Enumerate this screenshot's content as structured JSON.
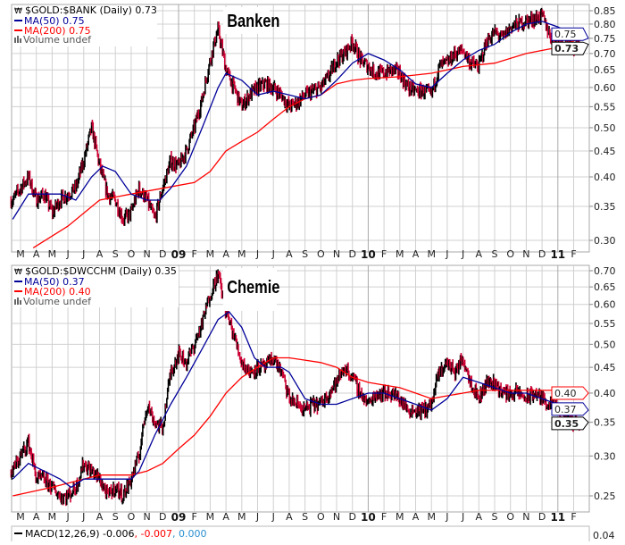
{
  "x_axis_labels": [
    "M",
    "A",
    "M",
    "J",
    "J",
    "A",
    "S",
    "O",
    "N",
    "D",
    "09",
    "F",
    "M",
    "A",
    "M",
    "J",
    "J",
    "A",
    "S",
    "O",
    "N",
    "D",
    "10",
    "F",
    "M",
    "A",
    "M",
    "J",
    "J",
    "A",
    "S",
    "O",
    "N",
    "D",
    "11",
    "F"
  ],
  "macd": {
    "label": "MACD(12,26,9) -0.006",
    "signal": ", -0.007",
    "hist": ", 0.000",
    "tick": "0.04",
    "signal_color": "#ff0000",
    "hist_color": "#2a8fd0"
  },
  "colors": {
    "ma50": "#000099",
    "ma200": "#ff0000",
    "up_bar": "#000000",
    "down_bar": "#cc0033",
    "grid": "#d0d0d0"
  },
  "chart_data": [
    {
      "type": "line",
      "title": "Banken",
      "legend": {
        "symbol": "$GOLD:$BANK (Daily) 0.73",
        "ma50": "MA(50) 0.75",
        "ma200": "MA(200) 0.75",
        "volume": "Volume undef"
      },
      "callouts": {
        "last": "0.73",
        "ma50": "0.75"
      },
      "scale": "log",
      "ylim": [
        0.29,
        0.86
      ],
      "yticks": [
        "0.85",
        "0.80",
        "0.75",
        "0.70",
        "0.65",
        "0.60",
        "0.55",
        "0.50",
        "0.45",
        "0.40",
        "0.35",
        "0.30"
      ],
      "x_unit": "months since Mar 2008",
      "close": [
        [
          -0.5,
          0.36
        ],
        [
          0,
          0.38
        ],
        [
          0.5,
          0.4
        ],
        [
          1,
          0.36
        ],
        [
          1.5,
          0.37
        ],
        [
          2,
          0.34
        ],
        [
          2.5,
          0.36
        ],
        [
          3,
          0.37
        ],
        [
          3.5,
          0.38
        ],
        [
          4,
          0.43
        ],
        [
          4.5,
          0.5
        ],
        [
          5,
          0.42
        ],
        [
          5.5,
          0.37
        ],
        [
          6,
          0.36
        ],
        [
          6.5,
          0.33
        ],
        [
          7,
          0.34
        ],
        [
          7.5,
          0.38
        ],
        [
          8,
          0.36
        ],
        [
          8.5,
          0.33
        ],
        [
          9,
          0.38
        ],
        [
          9.5,
          0.43
        ],
        [
          10,
          0.42
        ],
        [
          10.5,
          0.45
        ],
        [
          11,
          0.5
        ],
        [
          11.5,
          0.57
        ],
        [
          12,
          0.68
        ],
        [
          12.5,
          0.78
        ],
        [
          13,
          0.65
        ],
        [
          13.5,
          0.6
        ],
        [
          14,
          0.55
        ],
        [
          14.5,
          0.58
        ],
        [
          15,
          0.6
        ],
        [
          15.5,
          0.61
        ],
        [
          16,
          0.6
        ],
        [
          16.5,
          0.58
        ],
        [
          17,
          0.55
        ],
        [
          17.5,
          0.56
        ],
        [
          18,
          0.58
        ],
        [
          18.5,
          0.59
        ],
        [
          19,
          0.6
        ],
        [
          19.5,
          0.63
        ],
        [
          20,
          0.68
        ],
        [
          20.5,
          0.7
        ],
        [
          21,
          0.74
        ],
        [
          21.5,
          0.68
        ],
        [
          22,
          0.66
        ],
        [
          22.5,
          0.64
        ],
        [
          23,
          0.64
        ],
        [
          23.5,
          0.65
        ],
        [
          24,
          0.64
        ],
        [
          24.5,
          0.6
        ],
        [
          25,
          0.59
        ],
        [
          25.5,
          0.59
        ],
        [
          26,
          0.58
        ],
        [
          26.5,
          0.66
        ],
        [
          27,
          0.67
        ],
        [
          27.5,
          0.7
        ],
        [
          28,
          0.71
        ],
        [
          28.5,
          0.67
        ],
        [
          29,
          0.66
        ],
        [
          29.5,
          0.74
        ],
        [
          30,
          0.77
        ],
        [
          30.5,
          0.75
        ],
        [
          31,
          0.79
        ],
        [
          31.5,
          0.8
        ],
        [
          32,
          0.81
        ],
        [
          32.5,
          0.82
        ],
        [
          33,
          0.83
        ],
        [
          33.5,
          0.76
        ],
        [
          34,
          0.74
        ],
        [
          34.5,
          0.73
        ],
        [
          35,
          0.72
        ],
        [
          35.4,
          0.73
        ]
      ],
      "ma50": [
        [
          -0.5,
          0.33
        ],
        [
          0.5,
          0.37
        ],
        [
          1.5,
          0.37
        ],
        [
          2.5,
          0.37
        ],
        [
          3.5,
          0.36
        ],
        [
          4.5,
          0.4
        ],
        [
          5.2,
          0.42
        ],
        [
          6,
          0.41
        ],
        [
          7,
          0.37
        ],
        [
          8,
          0.36
        ],
        [
          8.8,
          0.36
        ],
        [
          9.5,
          0.38
        ],
        [
          10.5,
          0.42
        ],
        [
          11.5,
          0.5
        ],
        [
          12.5,
          0.6
        ],
        [
          13,
          0.64
        ],
        [
          14,
          0.62
        ],
        [
          15,
          0.58
        ],
        [
          16,
          0.59
        ],
        [
          17,
          0.58
        ],
        [
          18,
          0.57
        ],
        [
          19,
          0.58
        ],
        [
          20,
          0.62
        ],
        [
          21,
          0.67
        ],
        [
          22,
          0.7
        ],
        [
          23,
          0.68
        ],
        [
          24,
          0.65
        ],
        [
          25,
          0.61
        ],
        [
          26,
          0.6
        ],
        [
          27,
          0.64
        ],
        [
          28,
          0.68
        ],
        [
          29,
          0.71
        ],
        [
          30,
          0.73
        ],
        [
          31,
          0.77
        ],
        [
          32,
          0.8
        ],
        [
          33,
          0.81
        ],
        [
          34,
          0.79
        ],
        [
          35.4,
          0.75
        ]
      ],
      "ma200": [
        [
          0.8,
          0.29
        ],
        [
          3,
          0.32
        ],
        [
          5,
          0.36
        ],
        [
          7,
          0.37
        ],
        [
          9,
          0.38
        ],
        [
          11,
          0.39
        ],
        [
          12,
          0.41
        ],
        [
          13,
          0.45
        ],
        [
          14,
          0.47
        ],
        [
          15,
          0.49
        ],
        [
          16,
          0.52
        ],
        [
          17,
          0.55
        ],
        [
          18,
          0.57
        ],
        [
          19,
          0.58
        ],
        [
          20,
          0.61
        ],
        [
          21,
          0.62
        ],
        [
          22,
          0.625
        ],
        [
          24,
          0.63
        ],
        [
          26,
          0.64
        ],
        [
          28,
          0.66
        ],
        [
          30,
          0.67
        ],
        [
          32,
          0.7
        ],
        [
          34,
          0.72
        ],
        [
          35.4,
          0.75
        ]
      ]
    },
    {
      "type": "line",
      "title": "Chemie",
      "legend": {
        "symbol": "$GOLD:$DWCCHM (Daily) 0.35",
        "ma50": "MA(50) 0.37",
        "ma200": "MA(200) 0.40",
        "volume": "Volume undef"
      },
      "callouts": {
        "last": "0.35",
        "ma50": "0.37",
        "ma200": "0.40"
      },
      "scale": "log",
      "ylim": [
        0.235,
        0.72
      ],
      "yticks": [
        "0.70",
        "0.65",
        "0.60",
        "0.55",
        "0.50",
        "0.45",
        "0.40",
        "0.35",
        "0.30",
        "0.25"
      ],
      "x_unit": "months since Mar 2008",
      "close": [
        [
          -0.5,
          0.28
        ],
        [
          0,
          0.3
        ],
        [
          0.5,
          0.32
        ],
        [
          1,
          0.27
        ],
        [
          1.5,
          0.27
        ],
        [
          2,
          0.26
        ],
        [
          2.5,
          0.25
        ],
        [
          3,
          0.25
        ],
        [
          3.5,
          0.26
        ],
        [
          4,
          0.29
        ],
        [
          4.5,
          0.28
        ],
        [
          5,
          0.27
        ],
        [
          5.5,
          0.25
        ],
        [
          6,
          0.26
        ],
        [
          6.5,
          0.25
        ],
        [
          7,
          0.27
        ],
        [
          7.5,
          0.3
        ],
        [
          8,
          0.38
        ],
        [
          8.5,
          0.35
        ],
        [
          9,
          0.34
        ],
        [
          9.5,
          0.44
        ],
        [
          10,
          0.48
        ],
        [
          10.5,
          0.46
        ],
        [
          11,
          0.5
        ],
        [
          11.5,
          0.55
        ],
        [
          12,
          0.63
        ],
        [
          12.5,
          0.69
        ],
        [
          13,
          0.58
        ],
        [
          13.5,
          0.52
        ],
        [
          14,
          0.46
        ],
        [
          14.5,
          0.44
        ],
        [
          15,
          0.45
        ],
        [
          15.5,
          0.45
        ],
        [
          16,
          0.47
        ],
        [
          16.5,
          0.44
        ],
        [
          17,
          0.39
        ],
        [
          17.5,
          0.38
        ],
        [
          18,
          0.37
        ],
        [
          18.5,
          0.38
        ],
        [
          19,
          0.38
        ],
        [
          19.5,
          0.4
        ],
        [
          20,
          0.42
        ],
        [
          20.5,
          0.45
        ],
        [
          21,
          0.43
        ],
        [
          21.5,
          0.4
        ],
        [
          22,
          0.38
        ],
        [
          22.5,
          0.4
        ],
        [
          23,
          0.4
        ],
        [
          23.5,
          0.4
        ],
        [
          24,
          0.39
        ],
        [
          24.5,
          0.37
        ],
        [
          25,
          0.37
        ],
        [
          25.5,
          0.37
        ],
        [
          26,
          0.38
        ],
        [
          26.5,
          0.44
        ],
        [
          27,
          0.46
        ],
        [
          27.5,
          0.44
        ],
        [
          28,
          0.47
        ],
        [
          28.5,
          0.42
        ],
        [
          29,
          0.39
        ],
        [
          29.5,
          0.42
        ],
        [
          30,
          0.42
        ],
        [
          30.5,
          0.4
        ],
        [
          31,
          0.4
        ],
        [
          31.5,
          0.4
        ],
        [
          32,
          0.39
        ],
        [
          32.5,
          0.4
        ],
        [
          33,
          0.39
        ],
        [
          33.5,
          0.38
        ],
        [
          34,
          0.37
        ],
        [
          34.5,
          0.36
        ],
        [
          35,
          0.35
        ],
        [
          35.4,
          0.35
        ]
      ],
      "ma50": [
        [
          -0.5,
          0.27
        ],
        [
          0.5,
          0.29
        ],
        [
          1.5,
          0.28
        ],
        [
          2.5,
          0.27
        ],
        [
          3.2,
          0.26
        ],
        [
          4,
          0.27
        ],
        [
          5,
          0.27
        ],
        [
          6,
          0.27
        ],
        [
          7,
          0.27
        ],
        [
          7.5,
          0.28
        ],
        [
          8.5,
          0.33
        ],
        [
          9.5,
          0.38
        ],
        [
          10.5,
          0.43
        ],
        [
          11.5,
          0.49
        ],
        [
          12.5,
          0.56
        ],
        [
          13.2,
          0.58
        ],
        [
          14,
          0.54
        ],
        [
          14.8,
          0.47
        ],
        [
          15.5,
          0.45
        ],
        [
          16.5,
          0.45
        ],
        [
          17,
          0.44
        ],
        [
          18,
          0.39
        ],
        [
          19,
          0.38
        ],
        [
          20,
          0.38
        ],
        [
          21,
          0.39
        ],
        [
          22,
          0.4
        ],
        [
          23,
          0.4
        ],
        [
          24,
          0.39
        ],
        [
          25,
          0.38
        ],
        [
          26,
          0.37
        ],
        [
          27,
          0.39
        ],
        [
          28,
          0.43
        ],
        [
          29,
          0.42
        ],
        [
          30,
          0.41
        ],
        [
          31,
          0.4
        ],
        [
          32,
          0.4
        ],
        [
          33,
          0.39
        ],
        [
          34,
          0.38
        ],
        [
          35.4,
          0.37
        ]
      ],
      "ma200": [
        [
          -0.5,
          0.25
        ],
        [
          2,
          0.26
        ],
        [
          4,
          0.27
        ],
        [
          5,
          0.275
        ],
        [
          7,
          0.275
        ],
        [
          8,
          0.28
        ],
        [
          9,
          0.29
        ],
        [
          10,
          0.31
        ],
        [
          11,
          0.33
        ],
        [
          12,
          0.36
        ],
        [
          13,
          0.4
        ],
        [
          14,
          0.43
        ],
        [
          15,
          0.45
        ],
        [
          16,
          0.47
        ],
        [
          17,
          0.47
        ],
        [
          18,
          0.465
        ],
        [
          19,
          0.46
        ],
        [
          20,
          0.45
        ],
        [
          21,
          0.43
        ],
        [
          22,
          0.42
        ],
        [
          23,
          0.415
        ],
        [
          24,
          0.41
        ],
        [
          25,
          0.4
        ],
        [
          26,
          0.39
        ],
        [
          27,
          0.395
        ],
        [
          28,
          0.4
        ],
        [
          29,
          0.405
        ],
        [
          31,
          0.405
        ],
        [
          33,
          0.405
        ],
        [
          34.5,
          0.405
        ],
        [
          35.4,
          0.4
        ]
      ]
    }
  ]
}
